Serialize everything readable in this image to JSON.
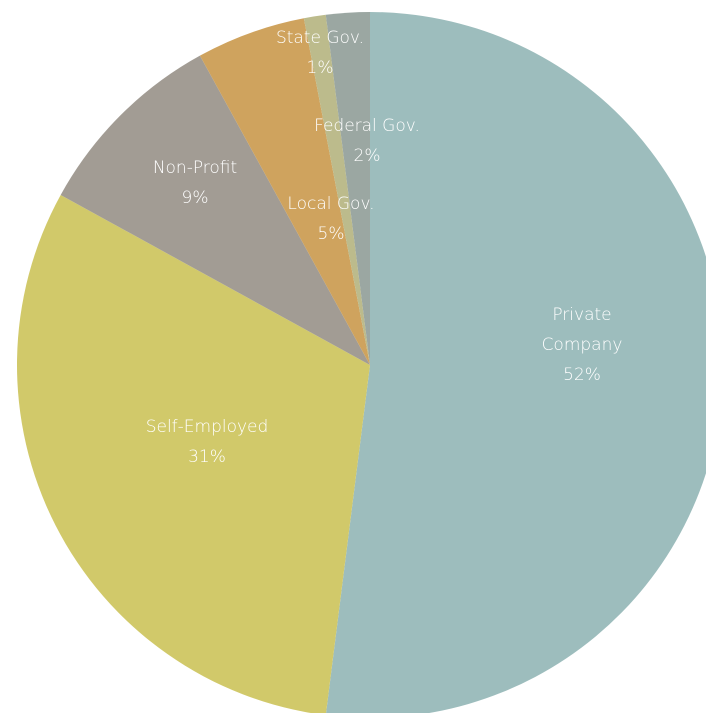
{
  "chart_data": {
    "type": "pie",
    "categories": [
      "Private Company",
      "Self-Employed",
      "Non-Profit",
      "Local Gov.",
      "State Gov.",
      "Federal Gov."
    ],
    "values": [
      52,
      31,
      9,
      5,
      1,
      2
    ],
    "value_labels": [
      "52%",
      "31%",
      "9%",
      "5%",
      "1%",
      "2%"
    ],
    "colors": [
      "#9dbdbd",
      "#d1c96a",
      "#a29c94",
      "#cfa35e",
      "#bcbb8c",
      "#9ba7a2"
    ]
  }
}
